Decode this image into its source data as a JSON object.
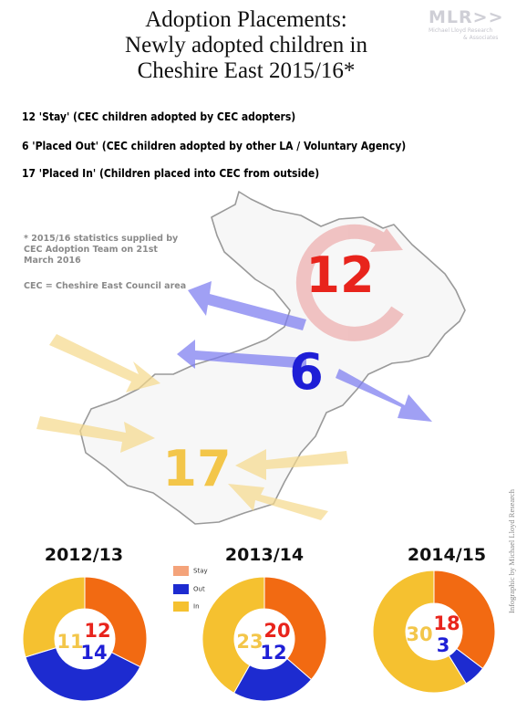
{
  "header": {
    "title_lines": [
      "Adoption Placements:",
      "Newly adopted children in",
      "Cheshire East 2015/16*"
    ]
  },
  "logo": {
    "mark": "MLR>>",
    "sub_line_1": "Michael Lloyd Research",
    "sub_line_2": "& Associates"
  },
  "legend": [
    {
      "text": "12 'Stay' (CEC children adopted by CEC adopters)",
      "color": "#e8241c"
    },
    {
      "text": "6 'Placed Out' (CEC children adopted by other LA / Voluntary Agency)",
      "color": "#1f1fd6"
    },
    {
      "text": "17 'Placed In' (Children placed into CEC from outside)",
      "color": "#f3c64a"
    }
  ],
  "notes": {
    "source": "* 2015/16 statistics supplied by CEC Adoption Team on 21st March 2016",
    "abbrev": "CEC = Cheshire East Council area"
  },
  "map": {
    "stay": "12",
    "placed_out": "6",
    "placed_in": "17"
  },
  "colors": {
    "stay": "#f26a12",
    "out": "#1d2bd0",
    "in": "#f5c130",
    "stay_label": "#e8241c",
    "out_label": "#1f1fd6",
    "in_label": "#f3c64a"
  },
  "pie_key": {
    "stay": "Stay",
    "out": "Out",
    "in": "In"
  },
  "chart_data": [
    {
      "type": "pie",
      "title": "2012/13",
      "categories": [
        "Stay",
        "Out",
        "In"
      ],
      "values": [
        12,
        14,
        11
      ]
    },
    {
      "type": "pie",
      "title": "2013/14",
      "categories": [
        "Stay",
        "Out",
        "In"
      ],
      "values": [
        20,
        12,
        23
      ]
    },
    {
      "type": "pie",
      "title": "2014/15",
      "categories": [
        "Stay",
        "Out",
        "In"
      ],
      "values": [
        18,
        3,
        30
      ]
    }
  ],
  "credit": "Infographic by Michael Lloyd Research"
}
